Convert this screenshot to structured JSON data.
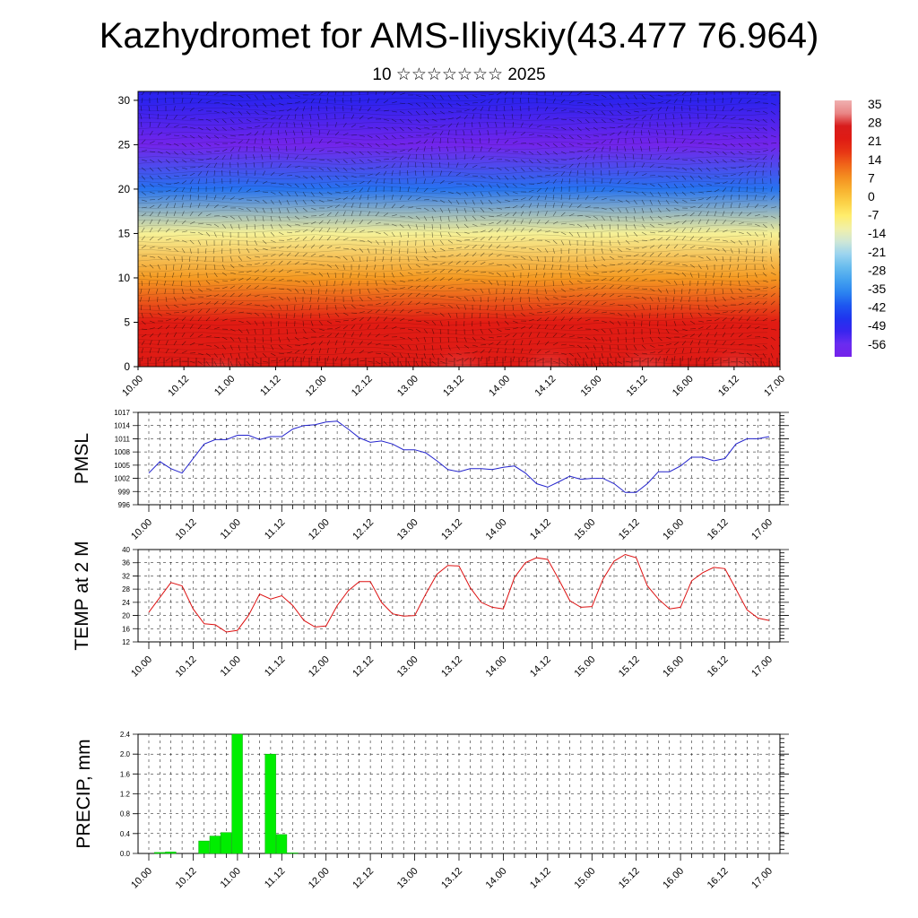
{
  "title": "Kazhydromet for AMS-Iliyskiy(43.477 76.964)",
  "subtitle": "10 ☆☆☆☆☆☆☆ 2025",
  "x_ticks": [
    "10.00",
    "10.12",
    "11.00",
    "11.12",
    "12.00",
    "12.12",
    "13.00",
    "13.12",
    "14.00",
    "14.12",
    "15.00",
    "15.12",
    "16.00",
    "16.12",
    "17.00"
  ],
  "colors": {
    "pmsl": "#2222cc",
    "temp": "#dd1111",
    "precip": "#00ee00"
  },
  "chart_data": [
    {
      "type": "heatmap",
      "title": "",
      "xlabel": "",
      "ylabel": "",
      "ylim": [
        0,
        31
      ],
      "y_ticks": [
        0,
        5,
        10,
        15,
        20,
        25,
        30
      ],
      "colorbar_labels": [
        "35",
        "28",
        "21",
        "14",
        "7",
        "0",
        "-7",
        "-14",
        "-21",
        "-28",
        "-35",
        "-42",
        "-49",
        "-56"
      ],
      "temperature_by_level": [
        {
          "level": 0,
          "value": 24
        },
        {
          "level": 5,
          "value": 22
        },
        {
          "level": 10,
          "value": 7
        },
        {
          "level": 15,
          "value": -10
        },
        {
          "level": 20,
          "value": -38
        },
        {
          "level": 25,
          "value": -60
        },
        {
          "level": 30,
          "value": -50
        }
      ],
      "overlay": "wind barbs"
    },
    {
      "type": "line",
      "ylabel": "PMSL",
      "ylim": [
        996,
        1017
      ],
      "y_ticks": [
        996,
        999,
        1002,
        1005,
        1008,
        1011,
        1014,
        1017
      ],
      "x_step_hours": 3,
      "values": [
        1003.2,
        1005.8,
        1004.2,
        1003.2,
        1006.5,
        1009.8,
        1010.8,
        1010.8,
        1011.8,
        1011.8,
        1010.8,
        1011.5,
        1011.5,
        1013.2,
        1014.0,
        1014.2,
        1014.8,
        1015.0,
        1013.2,
        1011.2,
        1010.2,
        1010.5,
        1009.8,
        1008.5,
        1008.5,
        1007.8,
        1006.0,
        1004.0,
        1003.5,
        1004.2,
        1004.2,
        1004.0,
        1004.5,
        1004.8,
        1003.2,
        1000.8,
        1000.0,
        1001.2,
        1002.5,
        1001.8,
        1002.0,
        1002.0,
        1000.8,
        998.8,
        998.8,
        1000.8,
        1003.5,
        1003.5,
        1004.8,
        1006.8,
        1006.8,
        1006.0,
        1006.5,
        1009.8,
        1011.0,
        1011.0,
        1011.5
      ]
    },
    {
      "type": "line",
      "ylabel": "TEMP at 2 M",
      "ylim": [
        12,
        40
      ],
      "y_ticks": [
        12,
        16,
        20,
        24,
        28,
        32,
        36,
        40
      ],
      "x_step_hours": 3,
      "values": [
        21,
        25.5,
        30,
        29,
        22,
        17.5,
        17.2,
        15,
        15.5,
        20,
        26.5,
        25,
        26,
        23,
        18.5,
        16.5,
        16.8,
        23,
        27.5,
        30.3,
        30.3,
        24,
        20.5,
        19.8,
        20,
        26.5,
        32.5,
        35.2,
        35,
        28.5,
        24,
        22.5,
        22,
        31.5,
        36,
        37.5,
        37,
        31,
        24.5,
        22.5,
        22.7,
        31,
        36.5,
        38.5,
        37.5,
        29,
        25,
        22,
        22.5,
        30.5,
        33,
        34.6,
        34.2,
        28,
        21.7,
        19.2,
        18.5
      ]
    },
    {
      "type": "bar",
      "ylabel": "PRECIP, mm",
      "ylim": [
        0,
        2.4
      ],
      "y_ticks": [
        "0.0",
        "0.4",
        "0.8",
        "1.2",
        "1.6",
        "2.0",
        "2.4"
      ],
      "x_step_hours": 3,
      "values": [
        0,
        0.02,
        0.03,
        0,
        0,
        0.25,
        0.35,
        0.42,
        2.4,
        0,
        0,
        2.0,
        0.38,
        0.01,
        0,
        0,
        0,
        0,
        0,
        0,
        0,
        0,
        0,
        0,
        0,
        0,
        0,
        0,
        0,
        0,
        0,
        0,
        0,
        0,
        0,
        0,
        0,
        0,
        0,
        0,
        0,
        0,
        0,
        0,
        0,
        0,
        0,
        0,
        0,
        0,
        0,
        0,
        0,
        0,
        0,
        0,
        0
      ]
    }
  ]
}
